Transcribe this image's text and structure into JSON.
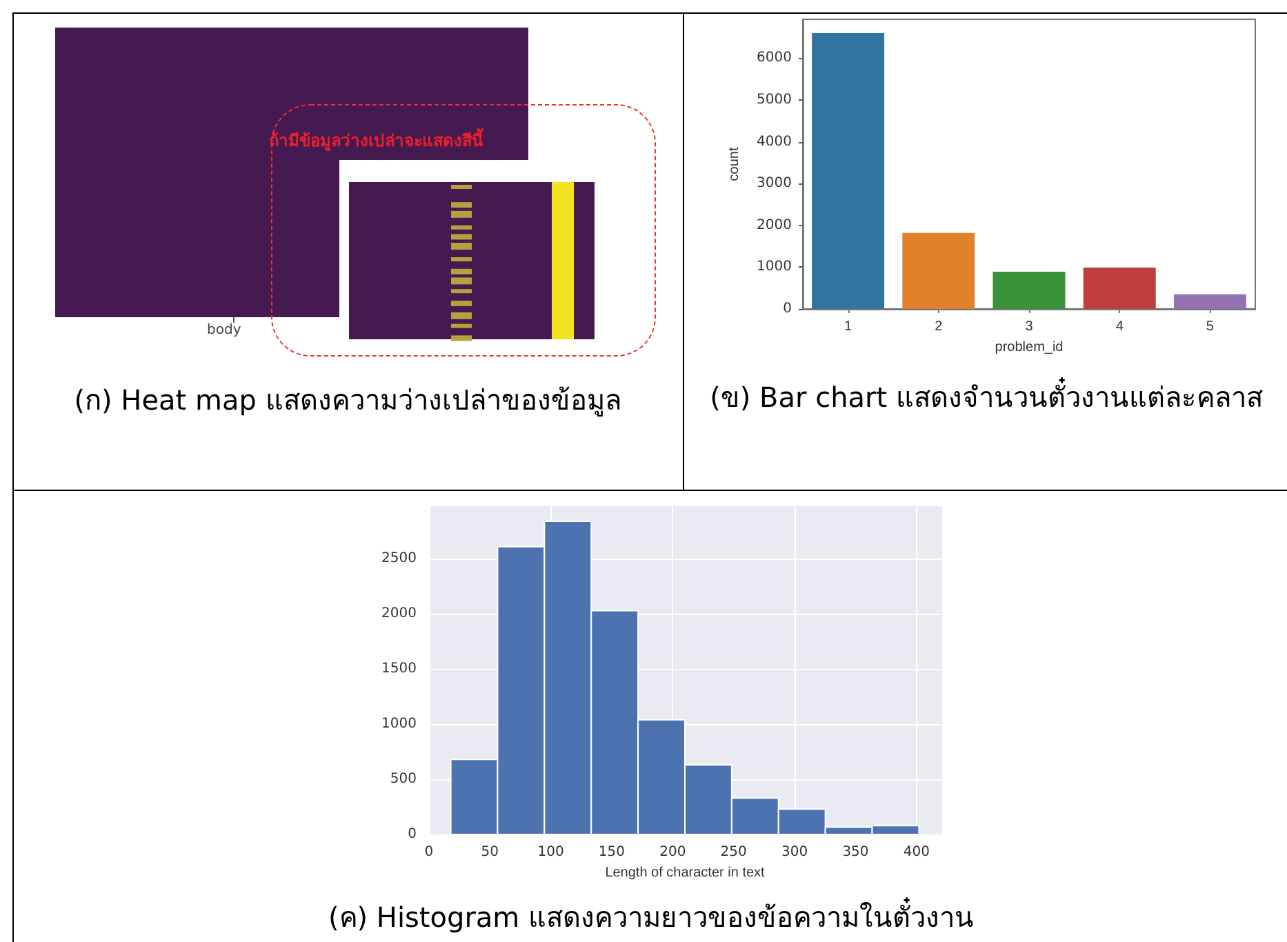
{
  "chart_data": [
    {
      "type": "other",
      "title": "(ก) Heat map แสดงความว่างเปล่าของข้อมูล",
      "xlabel": "body",
      "annotations": [
        "ถ้ามีข้อมูลว่างเปล่าจะแสดงสีนี้"
      ]
    },
    {
      "type": "bar",
      "title": "(ข) Bar chart แสดงจำนวนตั๋วงานแต่ละคลาส",
      "xlabel": "problem_id",
      "ylabel": "count",
      "categories": [
        "1",
        "2",
        "3",
        "4",
        "5"
      ],
      "values": [
        6600,
        1820,
        890,
        990,
        350
      ],
      "colors": [
        "#3274a1",
        "#e1812c",
        "#3a923a",
        "#c03d3e",
        "#9372b2"
      ],
      "ylim": [
        0,
        6930
      ],
      "yticks": [
        0,
        1000,
        2000,
        3000,
        4000,
        5000,
        6000
      ]
    },
    {
      "type": "histogram",
      "title": "(ค) Histogram แสดงความยาวของข้อความในตั๋วงาน",
      "xlabel": "Length of character in text",
      "bins": [
        18,
        56.4,
        94.8,
        133.2,
        171.6,
        210,
        248.4,
        286.8,
        325.2,
        363.6,
        402
      ],
      "values": [
        680,
        2610,
        2840,
        2030,
        1040,
        630,
        330,
        230,
        65,
        80
      ],
      "color": "#4c72b0",
      "xlim": [
        -1,
        421
      ],
      "xticks": [
        0,
        50,
        100,
        150,
        200,
        250,
        300,
        350,
        400
      ],
      "ylim": [
        0,
        2990
      ],
      "yticks": [
        0,
        500,
        1000,
        1500,
        2000,
        2500
      ],
      "grid": true
    }
  ]
}
